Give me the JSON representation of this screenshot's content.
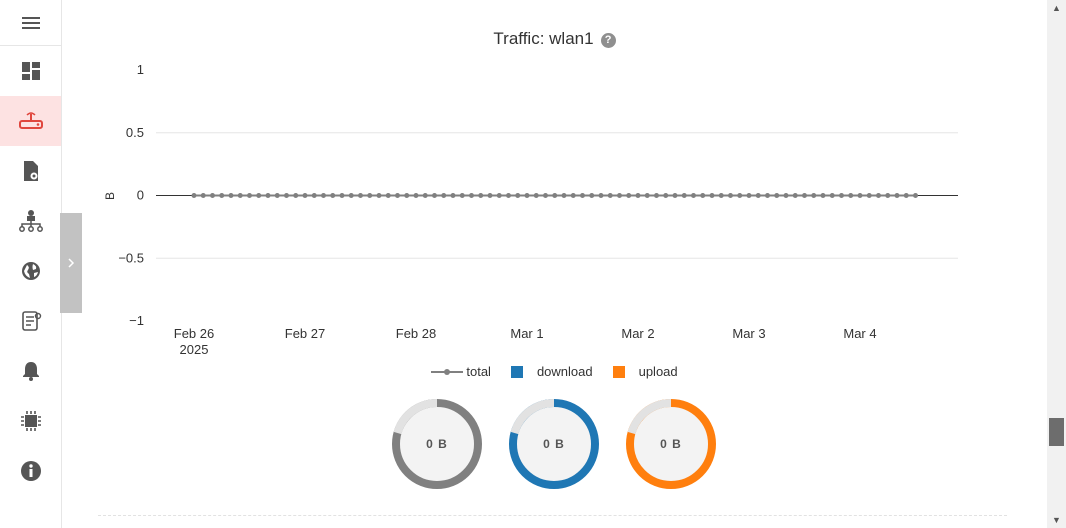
{
  "sidebar": {
    "items": [
      {
        "icon": "hamburger-menu-icon"
      },
      {
        "icon": "dashboard-icon"
      },
      {
        "icon": "router-icon",
        "active": true
      },
      {
        "icon": "file-settings-icon"
      },
      {
        "icon": "network-tree-icon"
      },
      {
        "icon": "globe-icon"
      },
      {
        "icon": "document-icon"
      },
      {
        "icon": "bell-icon"
      },
      {
        "icon": "chip-icon"
      },
      {
        "icon": "info-icon"
      }
    ],
    "active_color": "#fde2e2",
    "accent": "#e0463d"
  },
  "panel": {
    "title": "Traffic: wlan1",
    "help": "?"
  },
  "chart_data": {
    "type": "line",
    "title": "Traffic: wlan1",
    "ylabel": "B",
    "xlabel": "",
    "ylim": [
      -1,
      1
    ],
    "y_ticks": [
      "1",
      "0.5",
      "0",
      "−0.5",
      "−1"
    ],
    "y_tick_values": [
      1,
      0.5,
      0,
      -0.5,
      -1
    ],
    "x_ticks": [
      {
        "label": "Feb 26",
        "sub": "2025",
        "date": "2025-02-26"
      },
      {
        "label": "Feb 27",
        "sub": "",
        "date": "2025-02-27"
      },
      {
        "label": "Feb 28",
        "sub": "",
        "date": "2025-02-28"
      },
      {
        "label": "Mar 1",
        "sub": "",
        "date": "2025-03-01"
      },
      {
        "label": "Mar 2",
        "sub": "",
        "date": "2025-03-02"
      },
      {
        "label": "Mar 3",
        "sub": "",
        "date": "2025-03-03"
      },
      {
        "label": "Mar 4",
        "sub": "",
        "date": "2025-03-04"
      }
    ],
    "x_range": [
      "2025-02-26",
      "2025-03-04T12:00"
    ],
    "series": [
      {
        "name": "total",
        "color": "#808080",
        "x_start": "2025-02-26",
        "x_step_hours": 2,
        "count": 79,
        "value": 0
      }
    ],
    "grid": true,
    "legend": "bottom-center"
  },
  "legend": [
    {
      "label": "total",
      "color": "#808080",
      "kind": "line"
    },
    {
      "label": "download",
      "color": "#1f77b4",
      "kind": "square"
    },
    {
      "label": "upload",
      "color": "#ff7f0e",
      "kind": "square"
    }
  ],
  "donuts": [
    {
      "label": "0 B",
      "color": "#808080"
    },
    {
      "label": "0 B",
      "color": "#1f77b4"
    },
    {
      "label": "0 B",
      "color": "#ff7f0e"
    }
  ],
  "scrollbar": {
    "up": "▲",
    "down": "▼"
  }
}
